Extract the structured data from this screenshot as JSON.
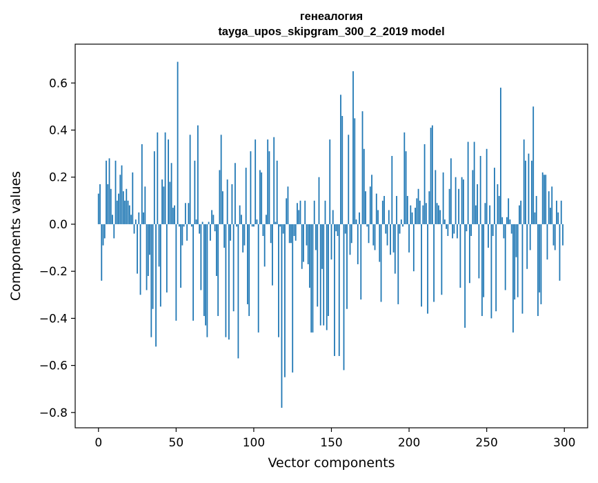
{
  "chart_data": {
    "type": "bar",
    "title": "генеалогия",
    "subtitle": "tayga_upos_skipgram_300_2_2019 model",
    "xlabel": "Vector components",
    "ylabel": "Components values",
    "xlim": [
      -15,
      315
    ],
    "ylim": [
      -0.865,
      0.765
    ],
    "xticks": [
      0,
      50,
      100,
      150,
      200,
      250,
      300
    ],
    "xtick_labels": [
      "0",
      "50",
      "100",
      "150",
      "200",
      "250",
      "300"
    ],
    "yticks": [
      -0.8,
      -0.6,
      -0.4,
      -0.2,
      0.0,
      0.2,
      0.4,
      0.6
    ],
    "ytick_labels": [
      "−0.8",
      "−0.6",
      "−0.4",
      "−0.2",
      "0.0",
      "0.2",
      "0.4",
      "0.6"
    ],
    "grid": false,
    "bar_color": "#1f77b4",
    "x": [
      0,
      1,
      2,
      3,
      4,
      5,
      6,
      7,
      8,
      9,
      10,
      11,
      12,
      13,
      14,
      15,
      16,
      17,
      18,
      19,
      20,
      21,
      22,
      23,
      24,
      25,
      26,
      27,
      28,
      29,
      30,
      31,
      32,
      33,
      34,
      35,
      36,
      37,
      38,
      39,
      40,
      41,
      42,
      43,
      44,
      45,
      46,
      47,
      48,
      49,
      50,
      51,
      52,
      53,
      54,
      55,
      56,
      57,
      58,
      59,
      60,
      61,
      62,
      63,
      64,
      65,
      66,
      67,
      68,
      69,
      70,
      71,
      72,
      73,
      74,
      75,
      76,
      77,
      78,
      79,
      80,
      81,
      82,
      83,
      84,
      85,
      86,
      87,
      88,
      89,
      90,
      91,
      92,
      93,
      94,
      95,
      96,
      97,
      98,
      99,
      100,
      101,
      102,
      103,
      104,
      105,
      106,
      107,
      108,
      109,
      110,
      111,
      112,
      113,
      114,
      115,
      116,
      117,
      118,
      119,
      120,
      121,
      122,
      123,
      124,
      125,
      126,
      127,
      128,
      129,
      130,
      131,
      132,
      133,
      134,
      135,
      136,
      137,
      138,
      139,
      140,
      141,
      142,
      143,
      144,
      145,
      146,
      147,
      148,
      149,
      150,
      151,
      152,
      153,
      154,
      155,
      156,
      157,
      158,
      159,
      160,
      161,
      162,
      163,
      164,
      165,
      166,
      167,
      168,
      169,
      170,
      171,
      172,
      173,
      174,
      175,
      176,
      177,
      178,
      179,
      180,
      181,
      182,
      183,
      184,
      185,
      186,
      187,
      188,
      189,
      190,
      191,
      192,
      193,
      194,
      195,
      196,
      197,
      198,
      199,
      200,
      201,
      202,
      203,
      204,
      205,
      206,
      207,
      208,
      209,
      210,
      211,
      212,
      213,
      214,
      215,
      216,
      217,
      218,
      219,
      220,
      221,
      222,
      223,
      224,
      225,
      226,
      227,
      228,
      229,
      230,
      231,
      232,
      233,
      234,
      235,
      236,
      237,
      238,
      239,
      240,
      241,
      242,
      243,
      244,
      245,
      246,
      247,
      248,
      249,
      250,
      251,
      252,
      253,
      254,
      255,
      256,
      257,
      258,
      259,
      260,
      261,
      262,
      263,
      264,
      265,
      266,
      267,
      268,
      269,
      270,
      271,
      272,
      273,
      274,
      275,
      276,
      277,
      278,
      279,
      280,
      281,
      282,
      283,
      284,
      285,
      286,
      287,
      288,
      289,
      290,
      291,
      292,
      293,
      294,
      295,
      296,
      297,
      298,
      299
    ],
    "values": [
      0.13,
      0.17,
      -0.24,
      -0.09,
      -0.06,
      0.27,
      0.17,
      0.28,
      0.15,
      0.04,
      -0.06,
      0.27,
      0.1,
      0.13,
      0.21,
      0.25,
      0.14,
      0.1,
      0.15,
      0.1,
      0.08,
      0.04,
      0.22,
      -0.04,
      0.02,
      -0.21,
      0.05,
      -0.3,
      0.34,
      0.05,
      0.16,
      -0.28,
      -0.22,
      -0.13,
      -0.48,
      -0.36,
      0.31,
      -0.52,
      0.39,
      -0.18,
      -0.35,
      0.19,
      0.16,
      0.39,
      -0.29,
      0.36,
      0.18,
      0.26,
      0.07,
      0.08,
      -0.41,
      0.69,
      -0.01,
      -0.27,
      -0.09,
      -0.01,
      0.09,
      -0.07,
      0.09,
      0.38,
      -0.01,
      -0.41,
      0.27,
      0.02,
      0.42,
      -0.04,
      -0.28,
      0.01,
      -0.39,
      -0.43,
      -0.48,
      0.01,
      -0.07,
      0.06,
      0.04,
      -0.03,
      -0.22,
      -0.39,
      0.23,
      0.38,
      0.14,
      -0.1,
      -0.48,
      0.19,
      -0.49,
      -0.07,
      0.17,
      -0.37,
      0.26,
      -0.01,
      -0.57,
      0.08,
      0.04,
      -0.12,
      -0.09,
      0.24,
      -0.34,
      -0.39,
      0.31,
      -0.01,
      -0.01,
      0.36,
      0.02,
      -0.46,
      0.23,
      0.22,
      -0.05,
      -0.18,
      0.04,
      0.36,
      0.31,
      -0.08,
      -0.26,
      0.37,
      0.01,
      0.27,
      -0.48,
      -0.01,
      -0.78,
      -0.04,
      -0.65,
      0.11,
      0.16,
      -0.08,
      -0.08,
      -0.63,
      -0.05,
      -0.07,
      0.09,
      0.06,
      0.1,
      -0.19,
      -0.16,
      0.1,
      -0.09,
      -0.17,
      -0.27,
      -0.46,
      -0.46,
      0.1,
      -0.11,
      -0.35,
      0.2,
      -0.43,
      -0.19,
      -0.43,
      0.1,
      -0.45,
      -0.39,
      0.36,
      -0.15,
      0.06,
      -0.56,
      -0.03,
      -0.05,
      -0.56,
      0.55,
      0.46,
      -0.62,
      -0.04,
      -0.36,
      0.38,
      -0.13,
      -0.08,
      0.65,
      0.45,
      0.02,
      -0.17,
      0.05,
      -0.32,
      0.48,
      0.32,
      0.14,
      -0.01,
      -0.08,
      0.16,
      0.21,
      -0.09,
      -0.11,
      0.13,
      0.06,
      -0.16,
      -0.33,
      0.1,
      0.12,
      -0.04,
      -0.09,
      0.06,
      -0.13,
      0.29,
      -0.12,
      -0.21,
      0.12,
      -0.34,
      -0.04,
      0.02,
      -0.01,
      0.39,
      0.31,
      0.12,
      -0.12,
      0.08,
      0.05,
      -0.2,
      0.07,
      0.11,
      0.15,
      0.1,
      -0.35,
      0.08,
      0.34,
      0.09,
      -0.38,
      0.14,
      0.41,
      0.42,
      -0.33,
      0.23,
      0.09,
      0.08,
      0.06,
      -0.3,
      0.22,
      0.02,
      -0.02,
      -0.05,
      0.15,
      0.28,
      -0.06,
      -0.04,
      0.2,
      -0.06,
      0.15,
      -0.27,
      0.2,
      0.19,
      -0.44,
      -0.03,
      0.35,
      -0.25,
      -0.05,
      0.23,
      0.35,
      0.08,
      0.17,
      -0.23,
      0.29,
      -0.39,
      -0.31,
      0.09,
      0.32,
      -0.1,
      0.08,
      -0.4,
      -0.05,
      0.24,
      -0.37,
      0.17,
      0.12,
      0.58,
      0.03,
      -0.06,
      -0.28,
      0.03,
      0.11,
      0.02,
      -0.04,
      -0.46,
      -0.32,
      -0.14,
      -0.31,
      0.08,
      0.1,
      -0.38,
      0.36,
      0.27,
      -0.19,
      0.3,
      -0.11,
      0.27,
      0.5,
      0.05,
      0.12,
      -0.39,
      -0.29,
      -0.34,
      0.22,
      0.21,
      0.21,
      -0.15,
      0.14,
      0.07,
      0.16,
      -0.09,
      -0.11,
      0.1,
      0.05,
      -0.24,
      0.1,
      -0.09
    ]
  }
}
